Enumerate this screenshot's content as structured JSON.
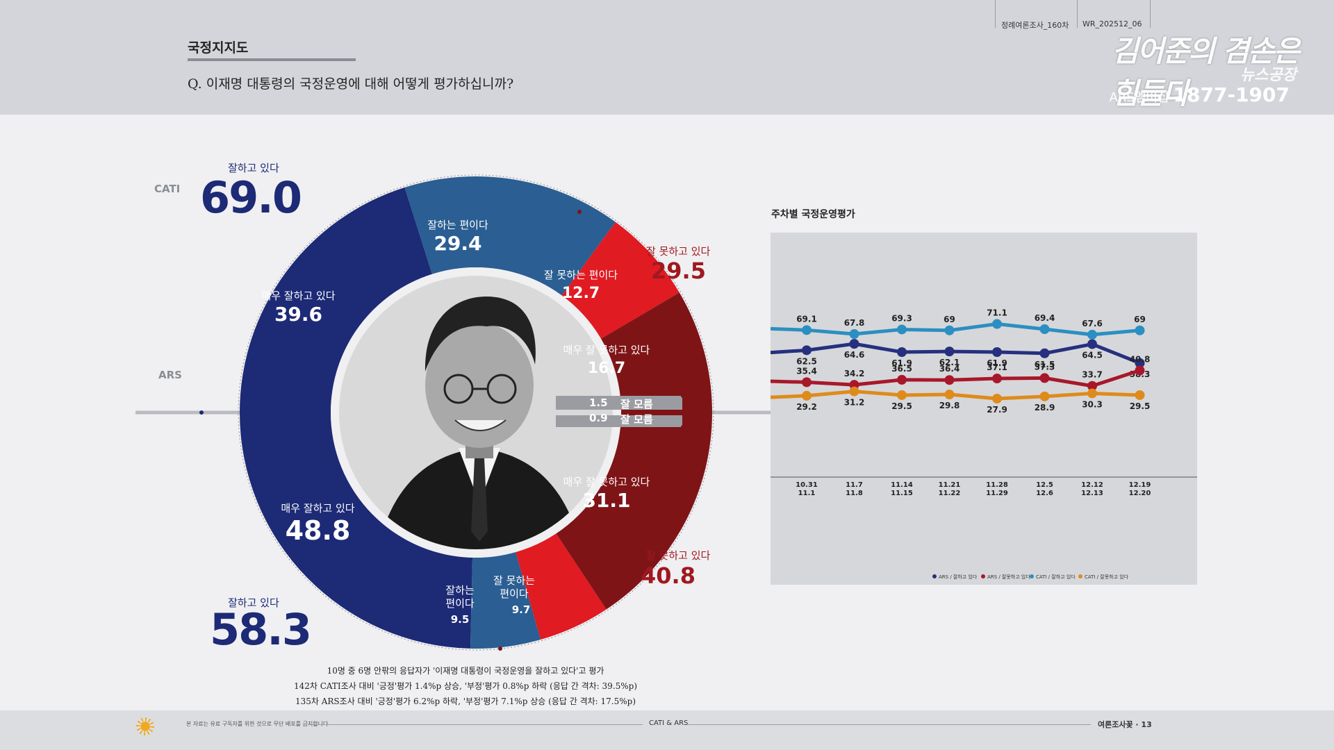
{
  "header": {
    "section_title": "국정지지도",
    "question": "Q. 이재명 대통령의 국정운영에 대해 어떻게 평가하십니까?",
    "survey_code": "정례여론조사_160차",
    "report_code": "WR_202512_06",
    "logo_line1": "김어준의 겸손은힘들다",
    "logo_line2": "뉴스공장",
    "logo_membership": "ARS멤버십",
    "logo_phone": "1877-1907"
  },
  "donut": {
    "cati_label": "CATI",
    "ars_label": "ARS",
    "cati_positive_label": "잘하고 있다",
    "cati_positive_total": "69.0",
    "cati_negative_label": "잘 못하고 있다",
    "cati_negative_total": "29.5",
    "ars_positive_label": "잘하고 있다",
    "ars_positive_total": "58.3",
    "ars_negative_label": "잘 못하고 있다",
    "ars_negative_total": "40.8"
  },
  "chart_data": [
    {
      "type": "pie",
      "series": [
        {
          "name": "CATI",
          "slices": [
            {
              "label": "매우 잘하고 있다",
              "value": 39.6,
              "color": "#1d2a76"
            },
            {
              "label": "잘하는 편이다",
              "value": 29.4,
              "color": "#2b5e92"
            },
            {
              "label": "잘 못하는 편이다",
              "value": 12.7,
              "color": "#e01b22"
            },
            {
              "label": "매우 잘 못하고 있다",
              "value": 16.7,
              "color": "#7f1417"
            },
            {
              "label": "잘 모름",
              "value": 1.5,
              "color": "#9a9ca2"
            }
          ]
        },
        {
          "name": "ARS",
          "slices": [
            {
              "label": "매우 잘하고 있다",
              "value": 48.8,
              "color": "#1d2a76"
            },
            {
              "label": "잘하는 편이다",
              "value": 9.5,
              "color": "#2b5e92"
            },
            {
              "label": "잘 못하는 편이다",
              "value": 9.7,
              "color": "#e01b22"
            },
            {
              "label": "매우 잘 못하고 있다",
              "value": 31.1,
              "color": "#7f1417"
            },
            {
              "label": "잘 모름",
              "value": 0.9,
              "color": "#9a9ca2"
            }
          ]
        }
      ]
    },
    {
      "type": "line",
      "title": "주차별 국정운영평가",
      "categories": [
        "10.31\n11.1",
        "11.7\n11.8",
        "11.14\n11.15",
        "11.21\n11.22",
        "11.28\n11.29",
        "12.5\n12.6",
        "12.12\n12.13",
        "12.19\n12.20"
      ],
      "ylim": [
        0,
        100
      ],
      "series": [
        {
          "name": "ARS / 잘하고 있다",
          "color": "#26307f",
          "values": [
            62.5,
            64.6,
            61.9,
            62.1,
            61.9,
            61.5,
            64.5,
            58.3
          ]
        },
        {
          "name": "ARS / 잘못하고 있다",
          "color": "#a8182a",
          "values": [
            35.4,
            34.2,
            36.5,
            36.4,
            37.1,
            37.3,
            33.7,
            40.8
          ]
        },
        {
          "name": "CATI / 잘하고 있다",
          "color": "#2b8fc2",
          "values": [
            69.1,
            67.8,
            69.3,
            69.0,
            71.1,
            69.4,
            67.6,
            69.0
          ]
        },
        {
          "name": "CATI / 잘못하고 있다",
          "color": "#de8b1c",
          "values": [
            29.2,
            31.2,
            29.5,
            29.8,
            27.9,
            28.9,
            30.3,
            29.5
          ]
        }
      ],
      "legend_position": "bottom"
    }
  ],
  "footnotes": [
    "10명 중 6명 안팎의 응답자가 '이재명 대통령이 국정운영을 잘하고 있다'고 평가",
    "142차 CATI조사 대비 '긍정'평가 1.4%p 상승, '부정'평가 0.8%p 하락 (응답 간 격차: 39.5%p)",
    "135차 ARS조사 대비 '긍정'평가 6.2%p 하락, '부정'평가 7.1%p 상승 (응답 간 격차: 17.5%p)"
  ],
  "footer": {
    "disclaimer": "본 자료는 유료 구독자를 위한 것으로 무단 배포를 금지합니다",
    "center": "CATI & ARS",
    "right": "여론조사꽃 · 13"
  }
}
